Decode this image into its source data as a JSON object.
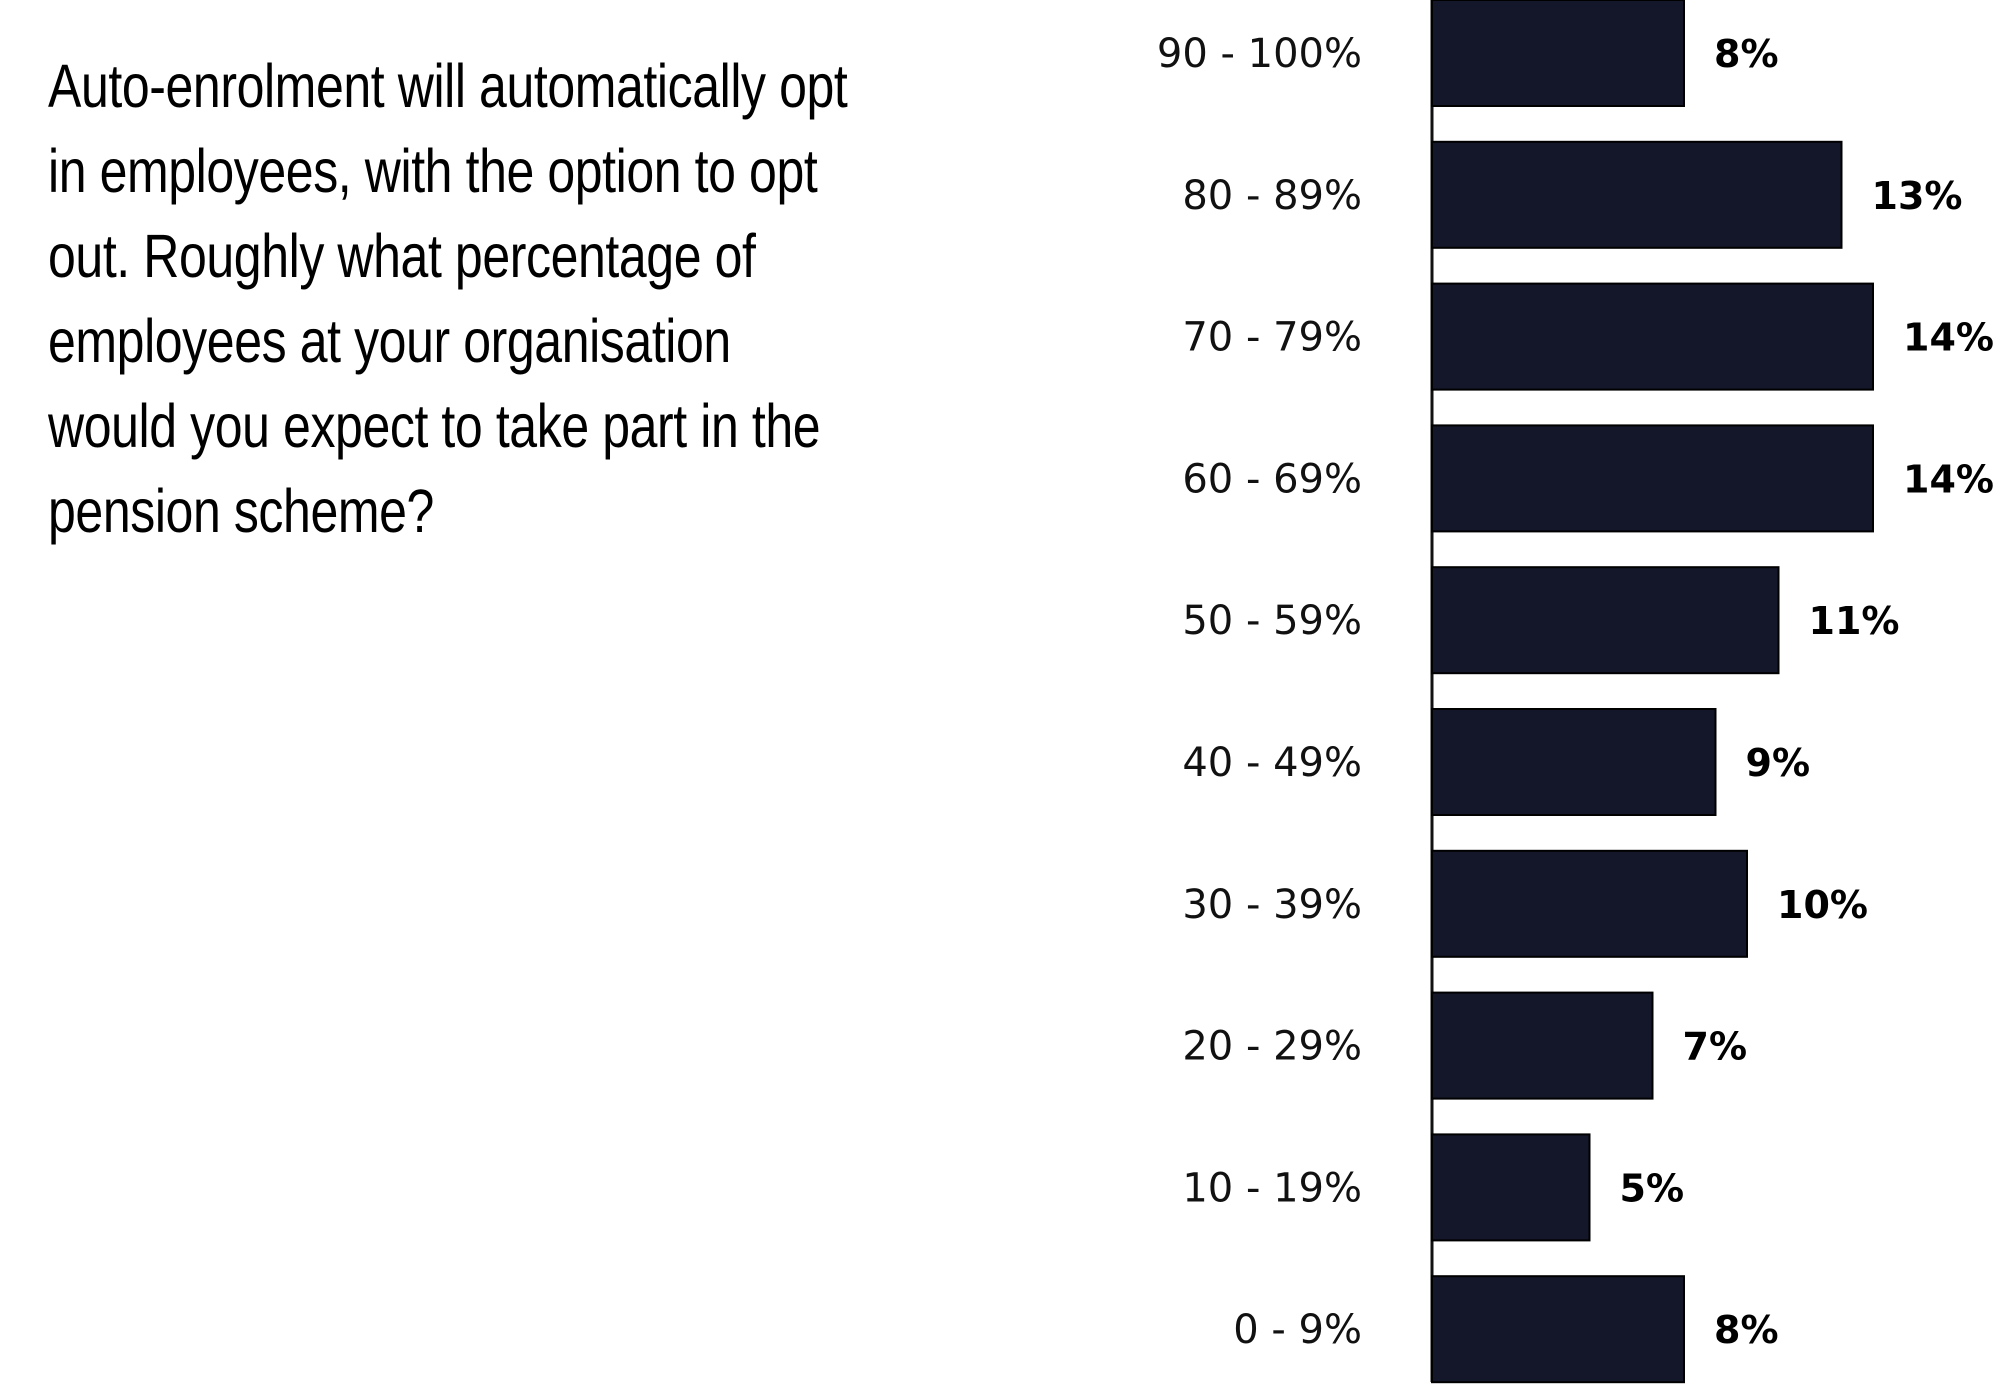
{
  "question": "Auto-enrolment will automatically opt in employees, with the option to opt out. Roughly what percentage of employees at your organisation  would you expect to take part in the pension scheme?",
  "chart_data": {
    "type": "bar",
    "orientation": "horizontal",
    "title": "",
    "xlabel": "",
    "ylabel": "",
    "categories": [
      "90 - 100%",
      "80 - 89%",
      "70 - 79%",
      "60 - 69%",
      "50 - 59%",
      "40 - 49%",
      "30 - 39%",
      "20 - 29%",
      "10 - 19%",
      "0 - 9%"
    ],
    "values": [
      8,
      13,
      14,
      14,
      11,
      9,
      10,
      7,
      5,
      8
    ],
    "value_labels": [
      "8%",
      "13%",
      "14%",
      "14%",
      "11%",
      "9%",
      "10%",
      "7%",
      "5%",
      "8%"
    ],
    "xlim": [
      0,
      14
    ],
    "grid": false,
    "legend": "none",
    "colors": {
      "bar": "#14172a",
      "axis": "#111111"
    }
  }
}
